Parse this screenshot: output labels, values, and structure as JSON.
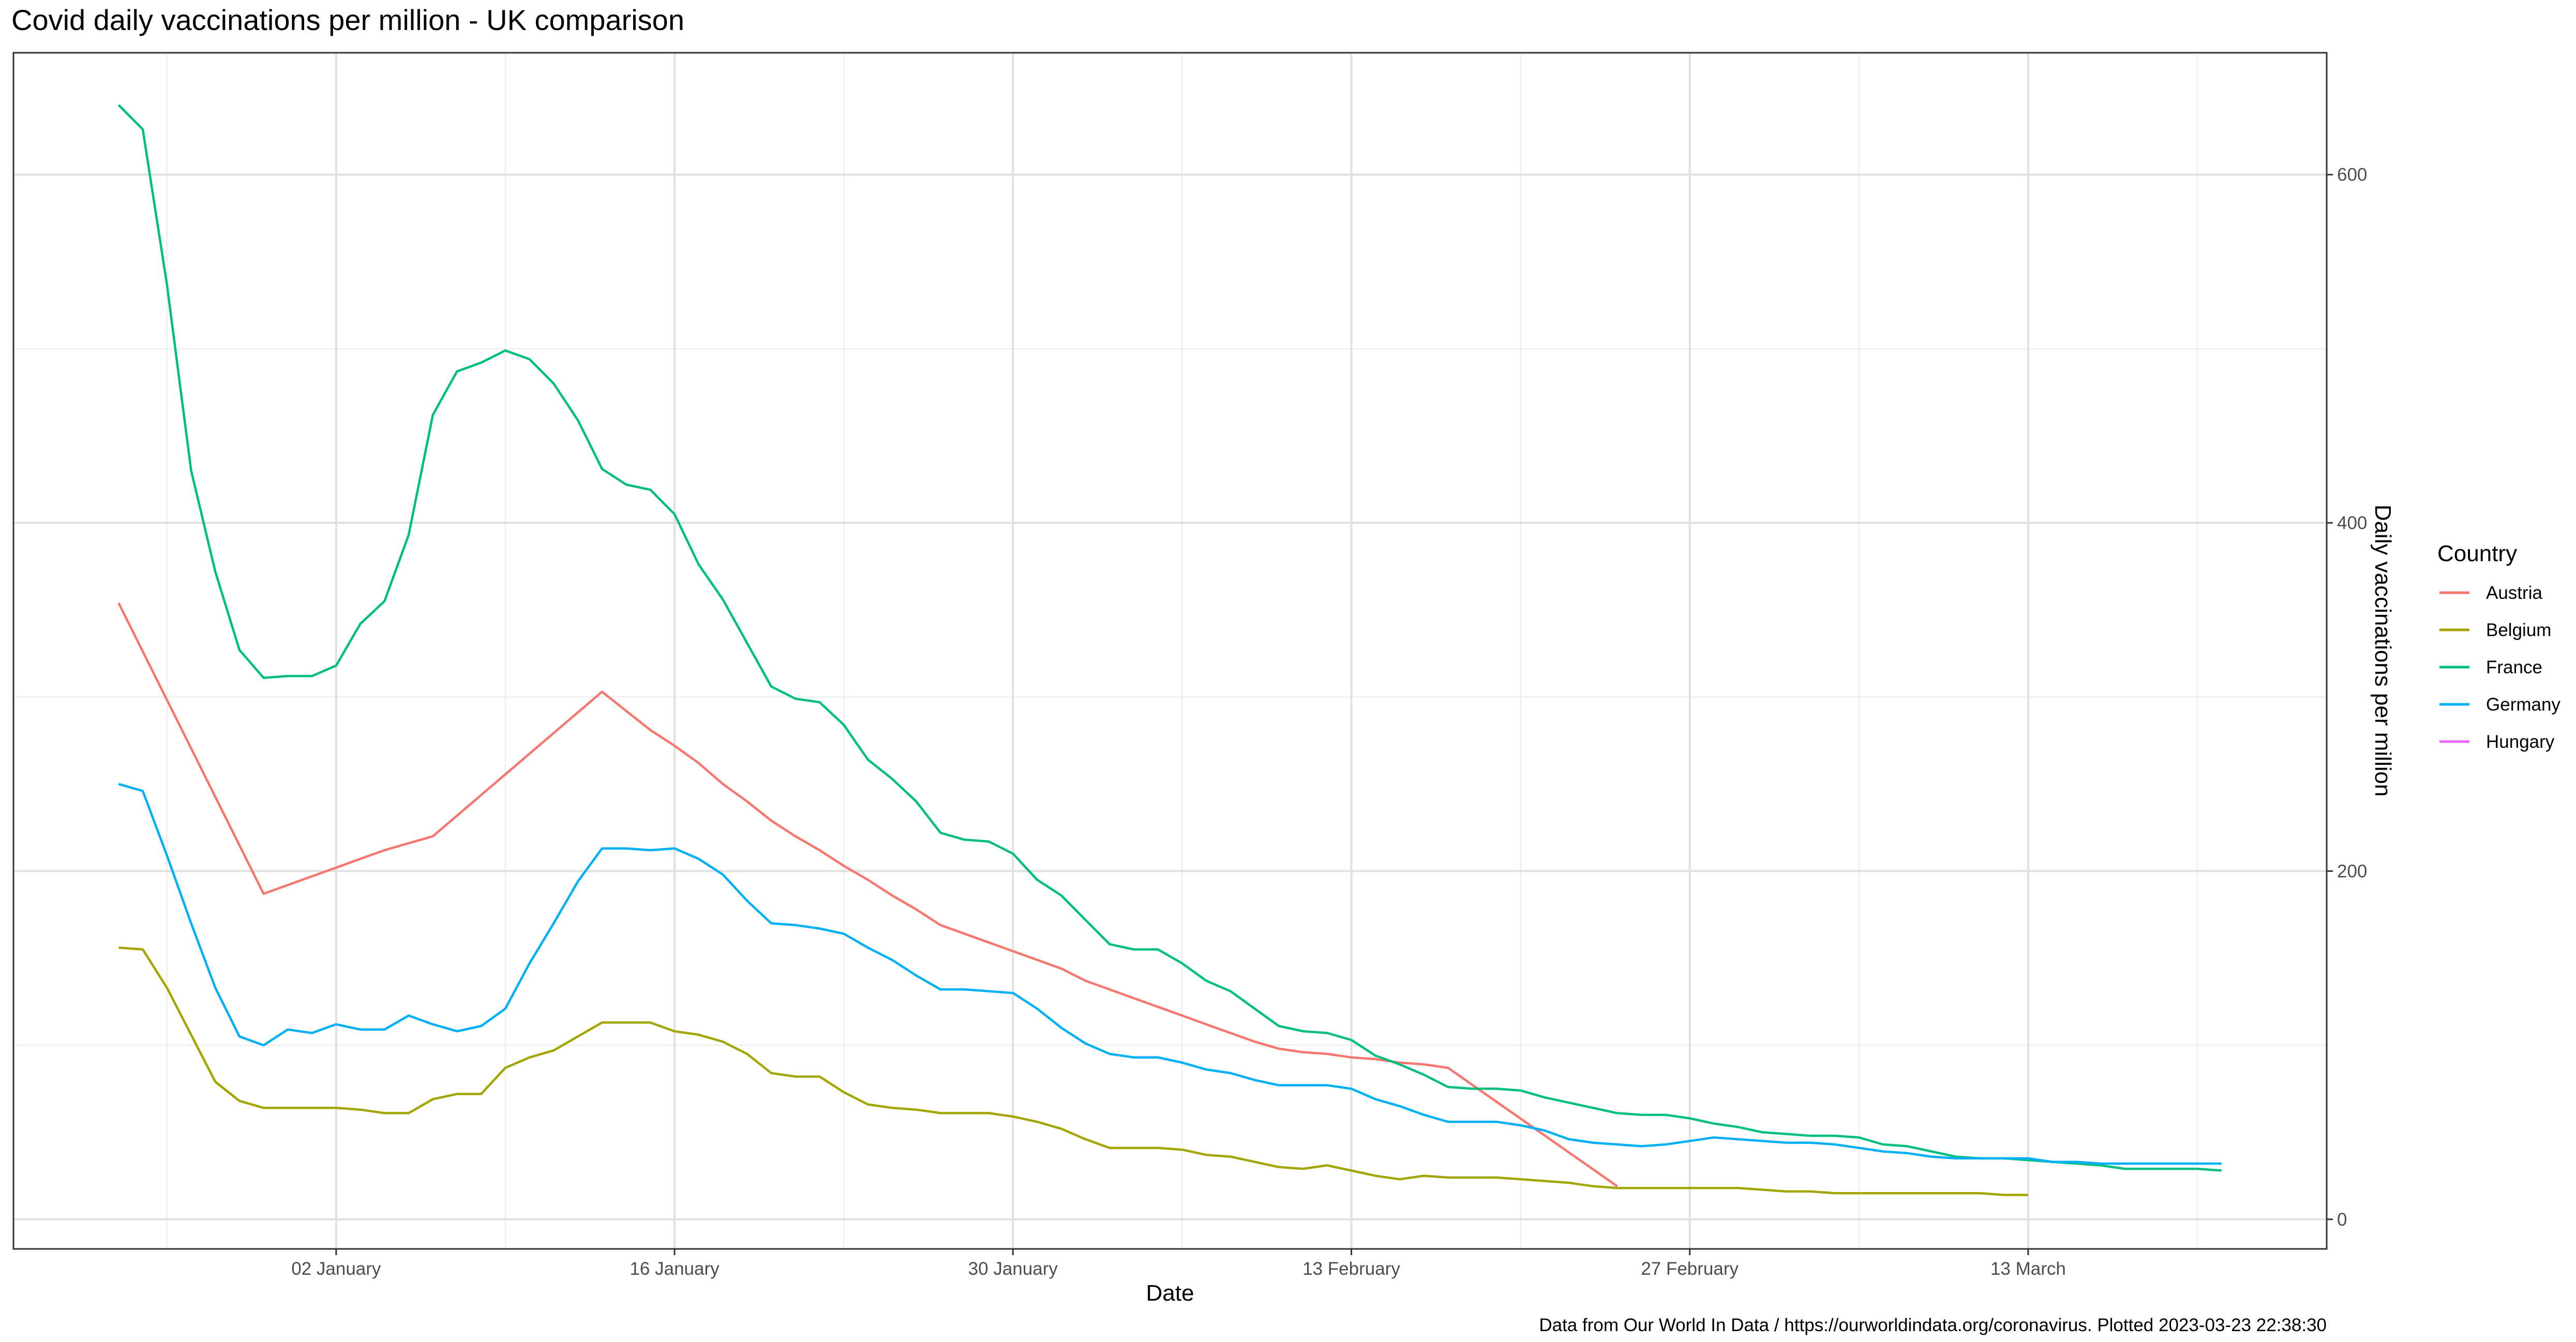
{
  "chart_data": {
    "type": "line",
    "title": "Covid daily vaccinations per million - UK comparison",
    "xlabel": "Date",
    "ylabel": "Daily vaccinations per million",
    "caption": "Data from Our World In Data / https://ourworldindata.org/coronavirus. Plotted 2023-03-23 22:38:30",
    "first_date": "24 December",
    "interval": "daily",
    "ylim": [
      -17,
      670
    ],
    "xlim_days": [
      -4.35,
      91.35
    ],
    "grid": true,
    "y_axis_position": "right",
    "legend_placement": "right",
    "legend_title": "Country",
    "x_ticks": [
      "02 January",
      "16 January",
      "30 January",
      "13 February",
      "27 February",
      "13 March"
    ],
    "y_ticks": [
      0,
      200,
      400,
      600
    ],
    "series": [
      {
        "name": "Austria",
        "color": "#F8766D",
        "values": [
          354,
          null,
          null,
          null,
          null,
          null,
          187,
          null,
          null,
          202,
          207,
          212,
          216,
          220,
          null,
          null,
          null,
          null,
          null,
          null,
          303,
          292,
          281,
          272,
          262,
          250,
          240,
          229,
          220,
          212,
          203,
          195,
          186,
          178,
          169,
          164,
          159,
          154,
          149,
          144,
          137,
          132,
          127,
          122,
          117,
          112,
          107,
          102,
          98,
          96,
          95,
          93,
          92,
          90,
          89,
          87,
          null,
          null,
          null,
          null,
          null,
          null,
          19,
          null,
          null,
          null,
          null,
          null,
          null,
          null,
          null,
          null,
          null,
          null,
          null,
          null,
          null,
          null,
          null,
          null,
          null,
          null,
          null,
          null,
          null,
          null,
          null,
          null
        ]
      },
      {
        "name": "Belgium",
        "color": "#A3A500",
        "values": [
          156,
          155,
          133,
          106,
          79,
          68,
          64,
          64,
          64,
          64,
          63,
          61,
          61,
          69,
          72,
          72,
          87,
          93,
          97,
          105,
          113,
          113,
          113,
          108,
          106,
          102,
          95,
          84,
          82,
          82,
          73,
          66,
          64,
          63,
          61,
          61,
          61,
          59,
          56,
          52,
          46,
          41,
          41,
          41,
          40,
          37,
          36,
          33,
          30,
          29,
          31,
          28,
          25,
          23,
          25,
          24,
          24,
          24,
          23,
          22,
          21,
          19,
          18,
          18,
          18,
          18,
          18,
          18,
          17,
          16,
          16,
          15,
          15,
          15,
          15,
          15,
          15,
          15,
          14,
          14,
          null,
          null,
          null,
          null,
          null,
          null,
          null,
          null
        ]
      },
      {
        "name": "France",
        "color": "#00BF7D",
        "values": [
          640,
          626,
          537,
          430,
          372,
          327,
          311,
          312,
          312,
          318,
          342,
          355,
          393,
          462,
          487,
          492,
          499,
          494,
          480,
          459,
          431,
          422,
          419,
          405,
          376,
          356,
          331,
          306,
          299,
          297,
          284,
          264,
          253,
          240,
          222,
          218,
          217,
          210,
          195,
          186,
          172,
          158,
          155,
          155,
          147,
          137,
          131,
          121,
          111,
          108,
          107,
          103,
          94,
          89,
          83,
          76,
          75,
          75,
          74,
          70,
          67,
          64,
          61,
          60,
          60,
          58,
          55,
          53,
          50,
          49,
          48,
          48,
          47,
          43,
          42,
          39,
          36,
          35,
          35,
          34,
          33,
          32,
          31,
          29,
          29,
          29,
          29,
          28
        ]
      },
      {
        "name": "Germany",
        "color": "#00B0F6",
        "values": [
          250,
          246,
          209,
          170,
          133,
          105,
          100,
          109,
          107,
          112,
          109,
          109,
          117,
          112,
          108,
          111,
          121,
          147,
          170,
          194,
          213,
          213,
          212,
          213,
          207,
          198,
          183,
          170,
          169,
          167,
          164,
          156,
          149,
          140,
          132,
          132,
          131,
          130,
          121,
          110,
          101,
          95,
          93,
          93,
          90,
          86,
          84,
          80,
          77,
          77,
          77,
          75,
          69,
          65,
          60,
          56,
          56,
          56,
          54,
          51,
          46,
          44,
          43,
          42,
          43,
          45,
          47,
          46,
          45,
          44,
          44,
          43,
          41,
          39,
          38,
          36,
          35,
          35,
          35,
          35,
          33,
          33,
          32,
          32,
          32,
          32,
          32,
          32
        ]
      },
      {
        "name": "Hungary",
        "color": "#E76BF3",
        "values": []
      }
    ]
  }
}
